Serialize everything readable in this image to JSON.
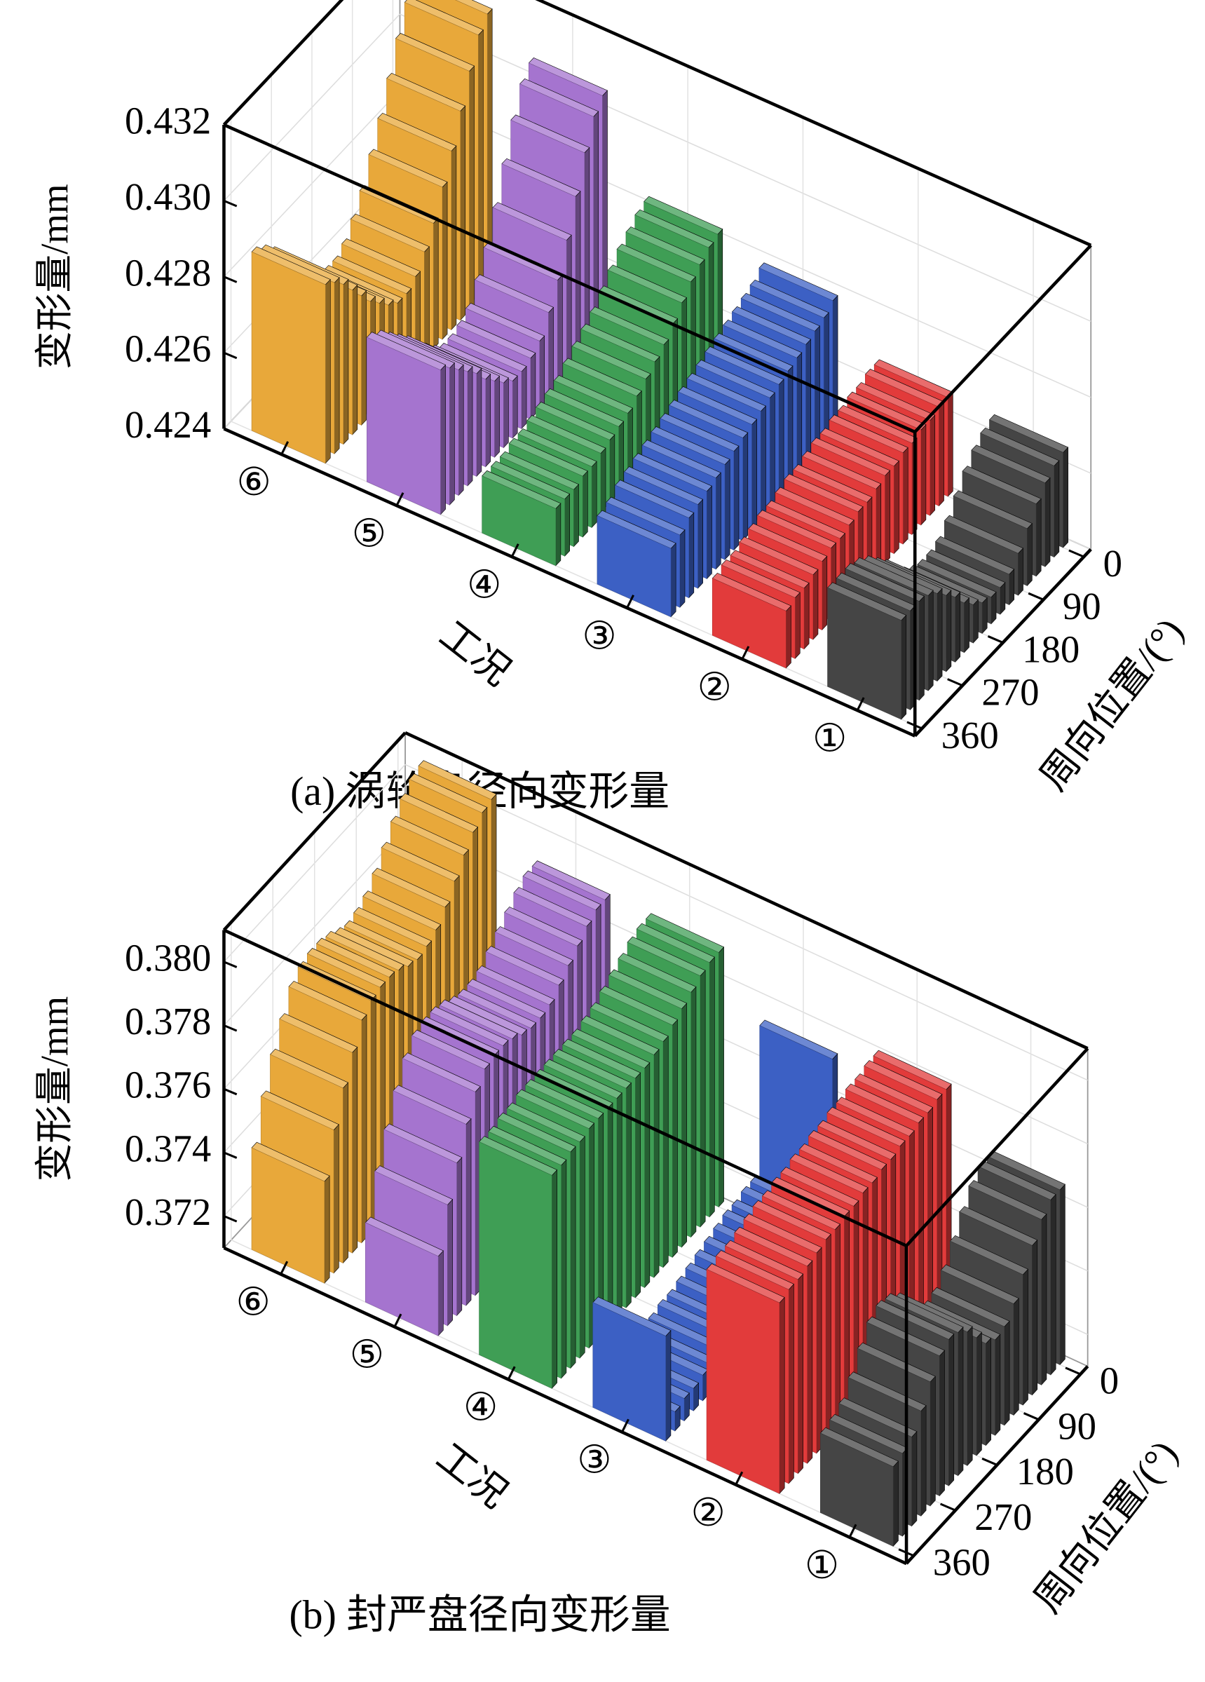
{
  "chart_data": [
    {
      "type": "bar3d",
      "caption": "(a) 涡轮盘径向变形量",
      "zlabel": "变形量/mm",
      "xlabel": "周向位置/(°)",
      "categories_label": "工况",
      "categories": [
        "⑥",
        "⑤",
        "④",
        "③",
        "②",
        "①"
      ],
      "x": [
        0,
        20,
        40,
        60,
        80,
        100,
        120,
        140,
        160,
        180,
        200,
        220,
        240,
        260,
        280,
        300,
        320,
        340,
        360
      ],
      "xticks": [
        0,
        90,
        180,
        270,
        360
      ],
      "zlim": [
        0.424,
        0.432
      ],
      "zticks": [
        0.424,
        0.426,
        0.428,
        {
          "value": 0.43,
          "label": "0.430"
        },
        0.432
      ],
      "series": [
        {
          "color": "#e8a83a",
          "values": [
            0.4313,
            0.431,
            0.4303,
            0.4295,
            0.4287,
            0.428,
            0.4273,
            0.4268,
            0.4264,
            0.4262,
            0.4262,
            0.4264,
            0.4267,
            0.427,
            0.4274,
            0.4278,
            0.4282,
            0.4285,
            0.4287
          ]
        },
        {
          "color": "#a574cf",
          "values": [
            0.4305,
            0.4302,
            0.4295,
            0.4286,
            0.4277,
            0.4269,
            0.4263,
            0.4258,
            0.4256,
            0.4255,
            0.4255,
            0.4257,
            0.426,
            0.4263,
            0.4267,
            0.427,
            0.4273,
            0.4276,
            0.4278
          ]
        },
        {
          "color": "#3f9e55",
          "values": [
            0.4282,
            0.4281,
            0.4279,
            0.4277,
            0.4274,
            0.4271,
            0.4268,
            0.4266,
            0.4264,
            0.4262,
            0.426,
            0.4259,
            0.4258,
            0.4257,
            0.4256,
            0.4256,
            0.4255,
            0.4255,
            0.4255
          ]
        },
        {
          "color": "#3c60c4",
          "values": [
            0.4278,
            0.4276,
            0.4275,
            0.4274,
            0.4273,
            0.4272,
            0.4271,
            0.427,
            0.4269,
            0.4268,
            0.4267,
            0.4266,
            0.4265,
            0.4264,
            0.4263,
            0.4262,
            0.4261,
            0.4259,
            0.4258
          ]
        },
        {
          "color": "#e23b3b",
          "values": [
            0.4266,
            0.4266,
            0.4265,
            0.4265,
            0.4264,
            0.4264,
            0.4263,
            0.4263,
            0.4262,
            0.4261,
            0.4261,
            0.426,
            0.4259,
            0.4259,
            0.4258,
            0.4257,
            0.4256,
            0.4256,
            0.4255
          ]
        },
        {
          "color": "#454545",
          "values": [
            0.4265,
            0.4264,
            0.4262,
            0.4259,
            0.4255,
            0.4251,
            0.4248,
            0.4247,
            0.4247,
            0.4248,
            0.425,
            0.4253,
            0.4257,
            0.426,
            0.4263,
            0.4265,
            0.4266,
            0.4266,
            0.4266
          ]
        }
      ]
    },
    {
      "type": "bar3d",
      "caption": "(b) 封严盘径向变形量",
      "zlabel": "变形量/mm",
      "xlabel": "周向位置/(°)",
      "categories_label": "工况",
      "categories": [
        "⑥",
        "⑤",
        "④",
        "③",
        "②",
        "①"
      ],
      "x": [
        0,
        20,
        40,
        60,
        80,
        100,
        120,
        140,
        160,
        180,
        200,
        220,
        240,
        260,
        280,
        300,
        320,
        340,
        360
      ],
      "xticks": [
        0,
        90,
        180,
        270,
        360
      ],
      "zlim": [
        0.371,
        0.381
      ],
      "zticks": [
        0.372,
        0.374,
        0.376,
        0.378,
        {
          "value": 0.38,
          "label": "0.380"
        }
      ],
      "series": [
        {
          "color": "#e8a83a",
          "values": [
            0.3805,
            0.3804,
            0.3801,
            0.3797,
            0.3792,
            0.3787,
            0.3783,
            0.3781,
            0.378,
            0.3781,
            0.3783,
            0.3784,
            0.3784,
            0.3783,
            0.378,
            0.3773,
            0.3765,
            0.3755,
            0.3742
          ]
        },
        {
          "color": "#a574cf",
          "values": [
            0.379,
            0.379,
            0.3788,
            0.3785,
            0.3782,
            0.3779,
            0.3776,
            0.3775,
            0.3775,
            0.3776,
            0.3778,
            0.3779,
            0.3779,
            0.3778,
            0.3774,
            0.3767,
            0.3758,
            0.3748,
            0.3735
          ]
        },
        {
          "color": "#3f9e55",
          "values": [
            0.379,
            0.379,
            0.3789,
            0.3787,
            0.3785,
            0.3783,
            0.3781,
            0.378,
            0.3779,
            0.3779,
            0.3779,
            0.3779,
            0.3779,
            0.3779,
            0.3779,
            0.3778,
            0.3778,
            0.3777,
            0.3777
          ]
        },
        {
          "color": "#3c60c4",
          "values": [
            0.3773,
            0.3727,
            0.3727,
            0.3726,
            0.3726,
            0.3725,
            0.3724,
            0.3723,
            0.3722,
            0.3721,
            0.372,
            0.372,
            0.3719,
            0.3718,
            0.3718,
            0.3717,
            0.3717,
            0.3716,
            0.3743
          ]
        },
        {
          "color": "#e23b3b",
          "values": [
            0.378,
            0.378,
            0.3779,
            0.3779,
            0.3778,
            0.3778,
            0.3777,
            0.3777,
            0.3776,
            0.3776,
            0.3775,
            0.3775,
            0.3774,
            0.3774,
            0.3773,
            0.3772,
            0.3771,
            0.3771,
            0.377
          ]
        },
        {
          "color": "#454545",
          "values": [
            0.3765,
            0.3765,
            0.3762,
            0.3757,
            0.3751,
            0.3745,
            0.3741,
            0.374,
            0.3742,
            0.3747,
            0.3752,
            0.3755,
            0.3756,
            0.3754,
            0.3749,
            0.3743,
            0.3738,
            0.3736,
            0.3735
          ]
        }
      ]
    }
  ]
}
